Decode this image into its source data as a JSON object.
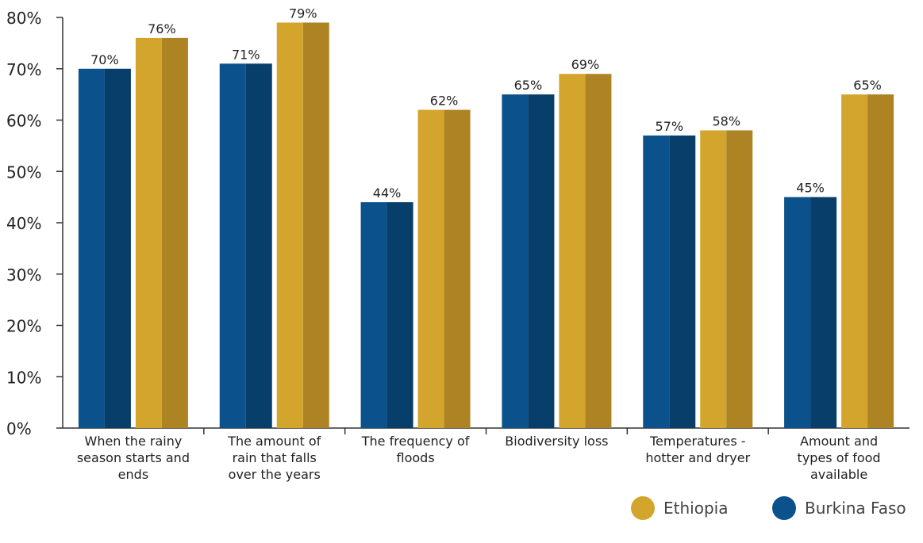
{
  "chart_data": {
    "type": "bar",
    "categories": [
      [
        "When the rainy",
        "season starts and",
        "ends"
      ],
      [
        "The amount of",
        "rain that falls",
        "over the years"
      ],
      [
        "The frequency of",
        "floods"
      ],
      [
        "Biodiversity loss"
      ],
      [
        "Temperatures -",
        "hotter and dryer"
      ],
      [
        "Amount and",
        "types of food",
        "available"
      ]
    ],
    "series": [
      {
        "name": "Burkina Faso",
        "color": "#0B528C",
        "shade": "#083E6A",
        "values": [
          70,
          71,
          44,
          65,
          57,
          45
        ],
        "labels": [
          "70%",
          "71%",
          "44%",
          "65%",
          "57%",
          "45%"
        ]
      },
      {
        "name": "Ethiopia",
        "color": "#D4A52C",
        "shade": "#AD8324",
        "values": [
          76,
          79,
          62,
          69,
          58,
          65
        ],
        "labels": [
          "76%",
          "79%",
          "62%",
          "69%",
          "58%",
          "65%"
        ]
      }
    ],
    "yticks": [
      "0%",
      "10%",
      "20%",
      "30%",
      "40%",
      "50%",
      "60%",
      "70%",
      "80%"
    ],
    "ylim": [
      0,
      80
    ],
    "legend": "bottom-right",
    "grid": false
  },
  "legend_items": [
    {
      "label": "Ethiopia",
      "color": "#D4A52C"
    },
    {
      "label": "Burkina Faso",
      "color": "#0B528C"
    }
  ]
}
